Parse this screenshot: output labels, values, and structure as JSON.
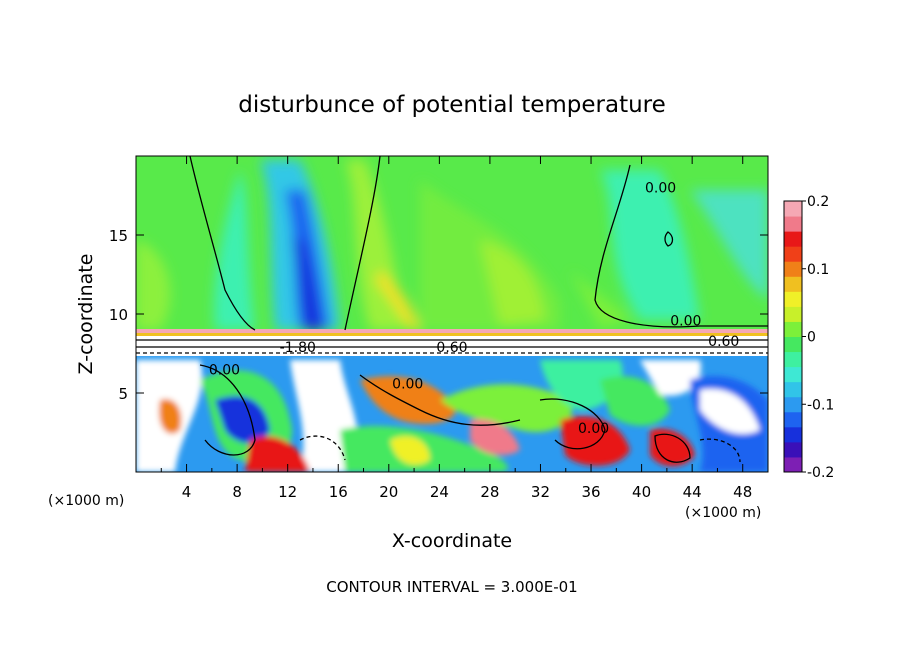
{
  "chart_data": {
    "type": "heatmap",
    "title": "disturbunce of potential temperature",
    "xlabel": "X-coordinate",
    "ylabel": "Z-coordinate",
    "x_unit_left": "(×1000 m)",
    "x_unit_right": "(×1000 m)",
    "xlim": [
      0,
      50
    ],
    "ylim": [
      0,
      20
    ],
    "xticks": [
      4,
      8,
      12,
      16,
      20,
      24,
      28,
      32,
      36,
      40,
      44,
      48
    ],
    "xtick_labels": [
      "4",
      "8",
      "12",
      "16",
      "20",
      "24",
      "28",
      "32",
      "36",
      "40",
      "44",
      "48"
    ],
    "yticks": [
      5,
      10,
      15
    ],
    "ytick_labels": [
      "5",
      "10",
      "15"
    ],
    "colorbar": {
      "min": -0.2,
      "max": 0.2,
      "ticks": [
        -0.2,
        -0.1,
        0,
        0.1,
        0.2
      ],
      "tick_labels": [
        "-0.2",
        "-0.1",
        "0",
        "0.1",
        "0.2"
      ],
      "colors": [
        "#7d1fb4",
        "#3a10b8",
        "#1730dc",
        "#1e63f0",
        "#2c9af0",
        "#31c4e8",
        "#3ee8d4",
        "#3ef0a0",
        "#45e860",
        "#7cf03a",
        "#c8f02a",
        "#f0f028",
        "#f0c020",
        "#f08018",
        "#f04018",
        "#e81818",
        "#f07a8a",
        "#f5a8b4"
      ]
    },
    "contour_labels": [
      {
        "text": "0.00",
        "x": 43.5,
        "z": 9.6
      },
      {
        "text": "0.60",
        "x": 46.5,
        "z": 8.3
      },
      {
        "text": "0.60",
        "x": 25.0,
        "z": 7.9
      },
      {
        "text": "-1.80",
        "x": 12.8,
        "z": 7.9
      },
      {
        "text": "0.00",
        "x": 7.0,
        "z": 6.5
      },
      {
        "text": "0.00",
        "x": 21.5,
        "z": 5.6
      },
      {
        "text": "0.00",
        "x": 36.2,
        "z": 2.8
      },
      {
        "text": "0.00",
        "x": 41.5,
        "z": 18.0
      }
    ],
    "footer": "CONTOUR INTERVAL = 3.000E-01",
    "grid": false,
    "legend": "colorbar-right"
  }
}
